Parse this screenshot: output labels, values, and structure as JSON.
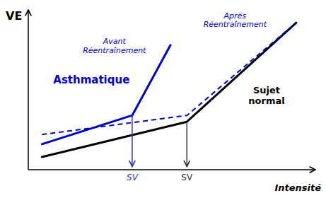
{
  "chart_data": {
    "type": "line",
    "xlabel": "Intensité",
    "ylabel": "VE",
    "xlim": [
      0,
      1.05
    ],
    "ylim": [
      0,
      1.0
    ],
    "grid": false,
    "tick_labels": false,
    "series": [
      {
        "name": "Sujet\nnormal",
        "color": "#000000",
        "line_style": "solid",
        "x": [
          0.05,
          0.58,
          0.98
        ],
        "values": [
          0.08,
          0.3,
          0.92
        ]
      },
      {
        "name": "Avant\nRéentraînement",
        "color": "#0000cc",
        "line_style": "solid",
        "x": [
          0.05,
          0.38,
          0.52
        ],
        "values": [
          0.16,
          0.34,
          0.78
        ]
      },
      {
        "name": "Après\nRéentraînement",
        "color": "#0000cc",
        "line_style": "dashed",
        "x": [
          0.05,
          0.58,
          0.98
        ],
        "values": [
          0.22,
          0.34,
          0.92
        ]
      }
    ],
    "annotations": [
      {
        "text": "Asthmatique",
        "color": "#0000cc"
      },
      {
        "text": "SV",
        "color": "#3333bb",
        "x": 0.38,
        "y_start": 0.34,
        "y_end": 0.02
      },
      {
        "text": "SV",
        "color": "#333333",
        "x": 0.58,
        "y_start": 0.3,
        "y_end": 0.02
      }
    ]
  }
}
